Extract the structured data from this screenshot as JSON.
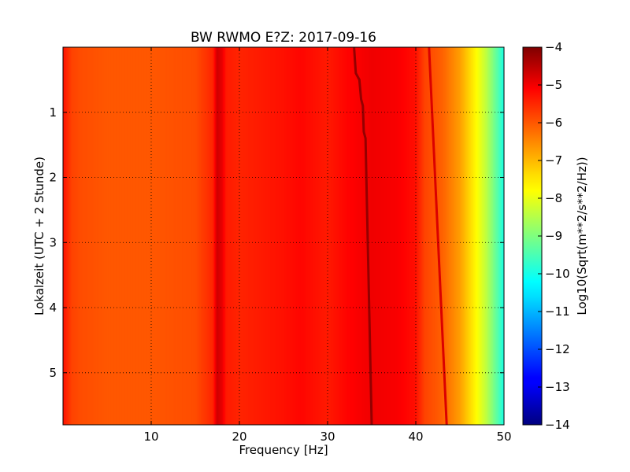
{
  "chart_data": {
    "type": "heatmap",
    "title": "BW RWMO E?Z: 2017-09-16",
    "xlabel": "Frequency [Hz]",
    "ylabel": "Lokalzeit (UTC + 2 Stunde)",
    "xlim": [
      0,
      50
    ],
    "ylim": [
      5.8,
      0
    ],
    "x_ticks": [
      10,
      20,
      30,
      40,
      50
    ],
    "x_tick_labels": [
      "10",
      "20",
      "30",
      "40",
      "50"
    ],
    "y_ticks": [
      1,
      2,
      3,
      4,
      5
    ],
    "y_tick_labels": [
      "1",
      "2",
      "3",
      "4",
      "5"
    ],
    "grid": true,
    "colormap": "jet",
    "colorbar": {
      "label": "Log10(Sqrt(m**2/s**2/Hz))",
      "range": [
        -14,
        -4
      ],
      "ticks": [
        -4,
        -5,
        -6,
        -7,
        -8,
        -9,
        -10,
        -11,
        -12,
        -13,
        -14
      ],
      "tick_labels": [
        "−4",
        "−5",
        "−6",
        "−7",
        "−8",
        "−9",
        "−10",
        "−11",
        "−12",
        "−13",
        "−14"
      ]
    },
    "level_profile": {
      "frequency_hz": [
        0,
        1,
        2,
        5,
        10,
        15,
        17,
        17.5,
        18,
        18.5,
        20,
        25,
        27,
        30,
        32,
        35,
        38,
        40,
        41,
        43,
        45,
        46,
        47,
        48,
        49,
        50
      ],
      "log10_amplitude": [
        -5.4,
        -5.9,
        -6.0,
        -6.1,
        -6.1,
        -6.0,
        -5.6,
        -4.8,
        -5.0,
        -5.5,
        -5.6,
        -5.4,
        -5.3,
        -5.5,
        -5.3,
        -5.1,
        -5.2,
        -5.4,
        -5.9,
        -6.2,
        -6.8,
        -7.3,
        -7.8,
        -8.4,
        -9.2,
        -10.0
      ]
    },
    "features": [
      {
        "kind": "drifting_line",
        "time_h": [
          0,
          0.4,
          0.5,
          0.8,
          0.9,
          1.3,
          1.4,
          5.8
        ],
        "frequency_hz": [
          33.0,
          33.2,
          33.6,
          33.8,
          34.0,
          34.1,
          34.3,
          35.0
        ],
        "log10_amplitude": -4.2
      },
      {
        "kind": "drifting_line",
        "time_h": [
          0,
          5.8
        ],
        "frequency_hz": [
          41.5,
          43.5
        ],
        "log10_amplitude": -4.9
      },
      {
        "kind": "steady_line",
        "frequency_hz": 17.5,
        "log10_amplitude": -4.8
      }
    ]
  }
}
